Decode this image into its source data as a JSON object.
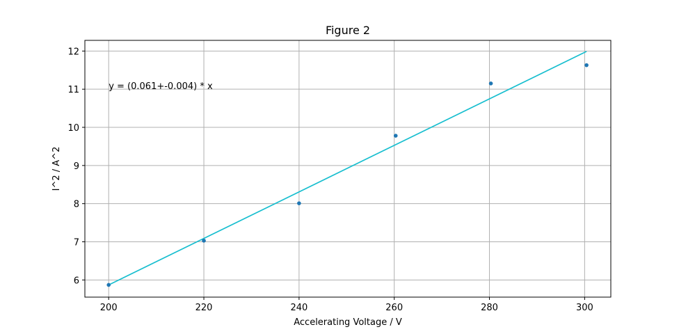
{
  "chart_data": {
    "type": "scatter",
    "title": "Figure 2",
    "xlabel": "Accelerating Voltage / V",
    "ylabel": "I^2 / A^2",
    "xlim": [
      195,
      305.5
    ],
    "ylim": [
      5.55,
      12.28
    ],
    "xticks": [
      200,
      220,
      240,
      260,
      280,
      300
    ],
    "yticks": [
      6,
      7,
      8,
      9,
      10,
      11,
      12
    ],
    "grid": true,
    "points": {
      "x": [
        200,
        220,
        240,
        260.3,
        280.3,
        300.4
      ],
      "y": [
        5.87,
        7.03,
        8.01,
        9.78,
        11.15,
        11.63
      ],
      "color": "#1f77b4"
    },
    "fit_line": {
      "x": [
        200,
        300.4
      ],
      "y": [
        5.87,
        11.99
      ],
      "color": "#17becf"
    },
    "annotation": {
      "text": "y = (0.061+-0.004) * x",
      "x": 200,
      "y": 11.0
    }
  }
}
